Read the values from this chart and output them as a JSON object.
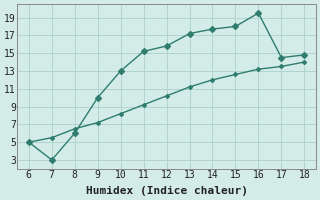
{
  "line1_x": [
    6,
    7,
    8,
    9,
    10,
    11,
    12,
    13,
    14,
    15,
    16,
    17,
    18
  ],
  "line1_y": [
    5,
    3,
    6,
    10,
    13,
    15.2,
    15.8,
    17.2,
    17.7,
    18,
    19.5,
    14.5,
    14.8
  ],
  "line2_x": [
    6,
    7,
    8,
    9,
    10,
    11,
    12,
    13,
    14,
    15,
    16,
    17,
    18
  ],
  "line2_y": [
    5,
    5.5,
    6.5,
    7.2,
    8.2,
    9.2,
    10.2,
    11.2,
    12.0,
    12.6,
    13.2,
    13.5,
    14.0
  ],
  "line_color": "#2e7d6e",
  "bg_color": "#d4ece8",
  "grid_color": "#b0d4ce",
  "xlabel": "Humidex (Indice chaleur)",
  "xlim": [
    5.5,
    18.5
  ],
  "ylim": [
    2,
    20.5
  ],
  "xticks": [
    6,
    7,
    8,
    9,
    10,
    11,
    12,
    13,
    14,
    15,
    16,
    17,
    18
  ],
  "yticks": [
    3,
    5,
    7,
    9,
    11,
    13,
    15,
    17,
    19
  ],
  "marker1": "D",
  "marker2": "D",
  "marker_size1": 3.0,
  "marker_size2": 2.0,
  "line_width": 1.0,
  "xlabel_fontsize": 8,
  "tick_fontsize": 7
}
